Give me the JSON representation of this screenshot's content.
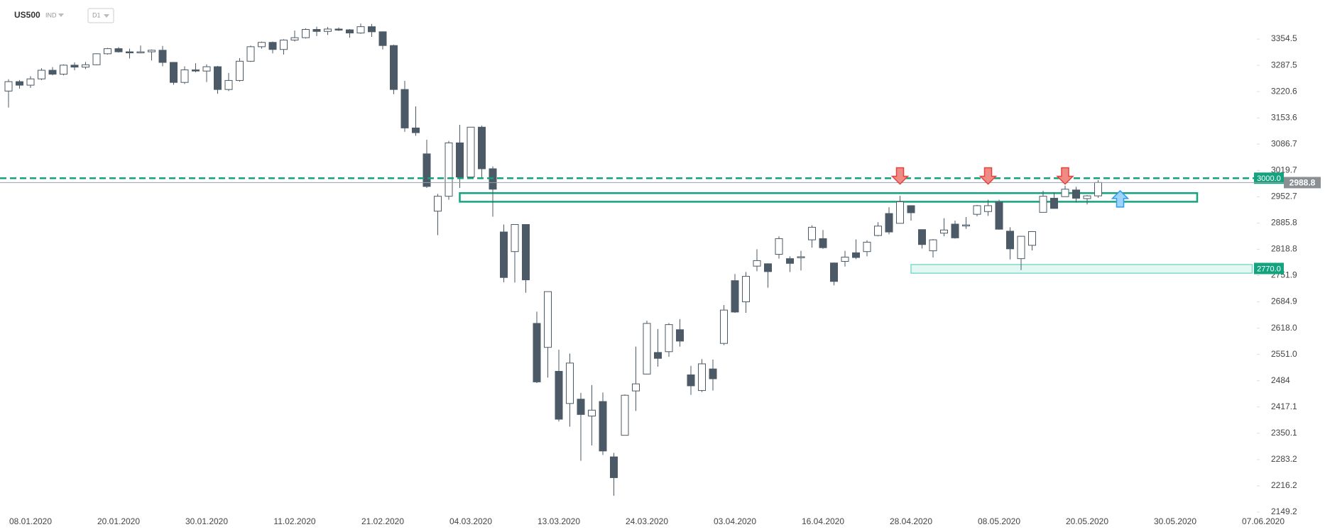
{
  "chart_data": {
    "type": "candlestick",
    "symbol": "US500",
    "market": "IND",
    "timeframe": "D1",
    "categories": [
      null,
      null,
      "08.01.2020",
      null,
      null,
      null,
      null,
      null,
      null,
      null,
      "20.01.2020",
      null,
      null,
      null,
      null,
      null,
      null,
      null,
      "30.01.2020",
      null,
      null,
      null,
      null,
      null,
      null,
      null,
      "11.02.2020",
      null,
      null,
      null,
      null,
      null,
      null,
      null,
      "21.02.2020",
      null,
      null,
      null,
      null,
      null,
      null,
      null,
      "04.03.2020",
      null,
      null,
      null,
      null,
      null,
      null,
      null,
      "13.03.2020",
      null,
      null,
      null,
      null,
      null,
      null,
      null,
      "24.03.2020",
      null,
      null,
      null,
      null,
      null,
      null,
      null,
      "03.04.2020",
      null,
      null,
      null,
      null,
      null,
      null,
      null,
      "16.04.2020",
      null,
      null,
      null,
      null,
      null,
      null,
      null,
      "28.04.2020",
      null,
      null,
      null,
      null,
      null,
      null,
      null,
      "08.05.2020",
      null,
      null,
      null,
      null,
      null,
      null,
      null,
      "20.05.2020",
      null,
      null,
      null,
      null,
      null,
      null,
      null,
      "30.05.2020",
      null,
      null,
      null,
      null,
      null,
      null,
      null,
      "07.06.2020",
      null
    ],
    "open": [
      3222,
      3246,
      3237,
      3253,
      3275,
      3265,
      3288,
      3283,
      3289,
      3317,
      3330,
      3322,
      3321,
      3322,
      3326,
      3295,
      3244,
      3276,
      3273,
      3284,
      3226,
      3249,
      3298,
      3335,
      3346,
      3328,
      3352,
      3358,
      3379,
      3374,
      3380,
      3378,
      3370,
      3386,
      3373,
      3338,
      3226,
      3128,
      3062,
      2916,
      2954,
      3090,
      3003,
      3130,
      3024,
      2863,
      2813,
      2882,
      2630,
      2569,
      2508,
      2426,
      2437,
      2394,
      2431,
      2290,
      2345,
      2458,
      2501,
      2556,
      2558,
      2614,
      2499,
      2459,
      2514,
      2579,
      2739,
      2685,
      2776,
      2782,
      2806,
      2795,
      2800,
      2843,
      2846,
      2784,
      2788,
      2810,
      2813,
      2854,
      2910,
      2885,
      2930,
      2869,
      2815,
      2860,
      2883,
      2879,
      2908,
      2915,
      2939,
      2865,
      2795,
      2829,
      2913,
      2949,
      2953,
      2970,
      2948,
      2955,
      null,
      null,
      null,
      null,
      null,
      null,
      null,
      null,
      null,
      null,
      null,
      null,
      null,
      null,
      null,
      null
    ],
    "high": [
      3252,
      3250,
      3260,
      3280,
      3283,
      3290,
      3295,
      3296,
      3318,
      3332,
      3334,
      3330,
      3338,
      3328,
      3337,
      3296,
      3285,
      3293,
      3290,
      3286,
      3268,
      3306,
      3338,
      3348,
      3348,
      3354,
      3376,
      3382,
      3386,
      3385,
      3384,
      3380,
      3394,
      3393,
      3374,
      3340,
      3248,
      3183,
      3098,
      2960,
      3095,
      3136,
      3130,
      3134,
      3030,
      2882,
      2882,
      2882,
      2660,
      2711,
      2563,
      2553,
      2453,
      2473,
      2454,
      2300,
      2449,
      2571,
      2637,
      2616,
      2631,
      2641,
      2522,
      2539,
      2538,
      2677,
      2756,
      2761,
      2819,
      2783,
      2852,
      2801,
      2815,
      2880,
      2868,
      2785,
      2815,
      2844,
      2842,
      2888,
      2926,
      2955,
      2931,
      2869,
      2845,
      2898,
      2892,
      2901,
      2932,
      2945,
      2945,
      2875,
      2853,
      2865,
      2968,
      2964,
      2981,
      2978,
      2957,
      2995,
      null,
      null,
      null,
      null,
      null,
      null,
      null,
      null,
      null,
      null,
      null,
      null,
      null,
      null,
      null,
      null
    ],
    "low": [
      3180,
      3228,
      3230,
      3250,
      3262,
      3262,
      3275,
      3278,
      3288,
      3315,
      3320,
      3305,
      3318,
      3300,
      3285,
      3238,
      3240,
      3270,
      3245,
      3215,
      3222,
      3246,
      3296,
      3330,
      3318,
      3315,
      3348,
      3356,
      3362,
      3365,
      3375,
      3358,
      3368,
      3360,
      3328,
      3214,
      3118,
      3108,
      2975,
      2855,
      2945,
      2975,
      3000,
      2999,
      2902,
      2735,
      2734,
      2708,
      2478,
      2492,
      2380,
      2367,
      2280,
      2319,
      2295,
      2191,
      2345,
      2407,
      2500,
      2520,
      2545,
      2571,
      2448,
      2455,
      2459,
      2575,
      2657,
      2657,
      2763,
      2721,
      2795,
      2761,
      2765,
      2823,
      2820,
      2727,
      2775,
      2794,
      2801,
      2852,
      2857,
      2885,
      2892,
      2821,
      2798,
      2852,
      2846,
      2871,
      2903,
      2904,
      2869,
      2793,
      2766,
      2816,
      2913,
      2922,
      2953,
      2938,
      2933,
      2950,
      null,
      null,
      null,
      null,
      null,
      null,
      null,
      null,
      null,
      null,
      null,
      null,
      null,
      null,
      null,
      null
    ],
    "close": [
      3246,
      3237,
      3253,
      3275,
      3265,
      3288,
      3283,
      3289,
      3317,
      3330,
      3322,
      3321,
      3322,
      3326,
      3295,
      3244,
      3276,
      3273,
      3284,
      3226,
      3249,
      3298,
      3335,
      3346,
      3328,
      3352,
      3358,
      3379,
      3374,
      3380,
      3378,
      3370,
      3386,
      3373,
      3338,
      3226,
      3128,
      3116,
      2979,
      2954,
      3090,
      3003,
      3130,
      3024,
      2972,
      2747,
      2882,
      2741,
      2481,
      2711,
      2386,
      2529,
      2398,
      2409,
      2305,
      2237,
      2447,
      2476,
      2630,
      2541,
      2627,
      2585,
      2471,
      2527,
      2489,
      2664,
      2659,
      2750,
      2790,
      2762,
      2846,
      2783,
      2800,
      2875,
      2823,
      2737,
      2799,
      2798,
      2837,
      2878,
      2863,
      2940,
      2912,
      2831,
      2843,
      2868,
      2848,
      2881,
      2930,
      2930,
      2870,
      2820,
      2852,
      2864,
      2954,
      2923,
      2972,
      2949,
      2955,
      2989,
      null,
      null,
      null,
      null,
      null,
      null,
      null,
      null,
      null,
      null,
      null,
      null,
      null,
      null,
      null,
      null
    ],
    "up_color": "#ffffff",
    "down_color": "#4b5a66",
    "ylim": [
      2149.2,
      3454
    ],
    "yticks": [
      2149.2,
      2216.2,
      2283.2,
      2350.1,
      2417.1,
      2484.0,
      {
        "value": 2551,
        "label": "2551.0"
      },
      {
        "value": 2618,
        "label": "2618.0"
      },
      2684.9,
      2751.9,
      2818.8,
      2885.8,
      2952.7,
      3019.7,
      3086.7,
      3153.6,
      3220.6,
      3287.5,
      3354.5
    ],
    "levels": [
      {
        "value": 3000,
        "label": "3000.0",
        "color": "#14a37f"
      },
      {
        "value": 2770,
        "label": "2770.0",
        "color": "#14a37f"
      }
    ],
    "last_price": 2988.8,
    "zones": [
      {
        "low": 2940,
        "high": 2962,
        "start": 41,
        "end": 108,
        "color": "#14a37f"
      },
      {
        "low": 2758,
        "high": 2780,
        "start": 82,
        "end": 113,
        "color": "#7fdcc8"
      }
    ],
    "signals": [
      {
        "index": 81,
        "value": 2985,
        "direction": "down",
        "color": "#e0443e"
      },
      {
        "index": 89,
        "value": 2985,
        "direction": "down",
        "color": "#e0443e"
      },
      {
        "index": 96,
        "value": 2985,
        "direction": "down",
        "color": "#e0443e"
      },
      {
        "index": 101,
        "value": 2968,
        "direction": "up",
        "color": "#2a9df4"
      }
    ]
  }
}
